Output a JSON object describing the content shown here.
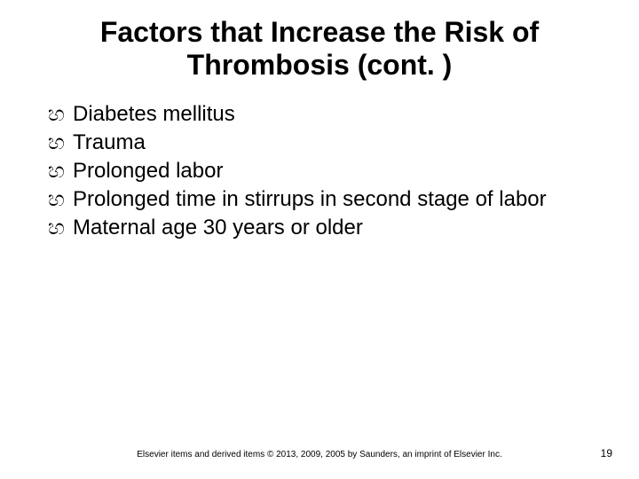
{
  "slide": {
    "title": "Factors that Increase the Risk of Thrombosis (cont. )",
    "title_fontsize": 32,
    "title_color": "#000000",
    "bullet_glyph": "හ",
    "bullet_fontsize": 24,
    "bullet_color": "#000000",
    "bullets": [
      "Diabetes mellitus",
      "Trauma",
      "Prolonged labor",
      "Prolonged time in stirrups in second stage of labor",
      "Maternal age 30 years or older"
    ],
    "footer_text": "Elsevier items and derived items © 2013, 2009, 2005 by Saunders, an imprint of Elsevier Inc.",
    "footer_fontsize": 10,
    "page_number": "19",
    "page_number_fontsize": 12,
    "background_color": "#ffffff"
  }
}
